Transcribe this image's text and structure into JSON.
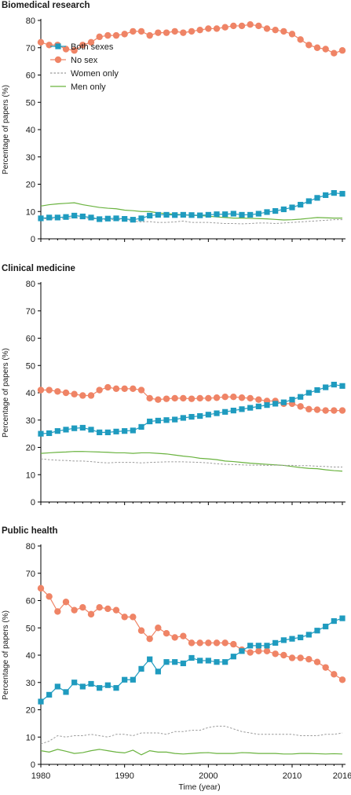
{
  "colors": {
    "both_sexes": "#1f9bbf",
    "no_sex": "#ef8466",
    "women_only": "#9a9a9a",
    "men_only": "#6ab33f"
  },
  "x_axis_label": "Time (year)",
  "y_axis_label": "Percentage of papers (%)",
  "chart_data": [
    {
      "type": "line",
      "title": "Biomedical research",
      "xlabel": "",
      "ylabel": "Percentage of papers (%)",
      "xlim": [
        1980,
        2016
      ],
      "ylim": [
        0,
        80
      ],
      "x_ticks": [
        "1980",
        "1990",
        "2000",
        "2010",
        "2016"
      ],
      "y_ticks": [
        "0",
        "10",
        "20",
        "30",
        "40",
        "50",
        "60",
        "70",
        "80"
      ],
      "grid": false,
      "legend": "upper-left",
      "x": [
        1980,
        1981,
        1982,
        1983,
        1984,
        1985,
        1986,
        1987,
        1988,
        1989,
        1990,
        1991,
        1992,
        1993,
        1994,
        1995,
        1996,
        1997,
        1998,
        1999,
        2000,
        2001,
        2002,
        2003,
        2004,
        2005,
        2006,
        2007,
        2008,
        2009,
        2010,
        2011,
        2012,
        2013,
        2014,
        2015,
        2016
      ],
      "series": [
        {
          "name": "Both sexes",
          "style": "square",
          "values": [
            7.5,
            7.8,
            7.8,
            8.0,
            8.5,
            8.2,
            7.8,
            7.2,
            7.4,
            7.5,
            7.3,
            7.0,
            7.5,
            8.5,
            8.8,
            8.8,
            8.7,
            8.8,
            8.7,
            8.6,
            8.8,
            9.0,
            9.0,
            9.2,
            8.8,
            8.8,
            9.2,
            9.8,
            10.2,
            10.8,
            11.5,
            12.5,
            13.8,
            15.0,
            16.0,
            16.8,
            16.5
          ]
        },
        {
          "name": "No sex",
          "style": "circle",
          "values": [
            72,
            71,
            71,
            69.5,
            69,
            71,
            72,
            74,
            74.5,
            74.5,
            75,
            76,
            76,
            74.5,
            75.5,
            75.5,
            76,
            75.5,
            76,
            76.5,
            77,
            77,
            77.5,
            78,
            78,
            78.5,
            78,
            77,
            76.5,
            76,
            75,
            73,
            71,
            70,
            69.5,
            68,
            69
          ]
        },
        {
          "name": "Women only",
          "style": "dashed",
          "values": [
            7.5,
            7.2,
            7.5,
            7.5,
            7.8,
            7.5,
            7.5,
            7.2,
            7.0,
            7.0,
            7.0,
            6.5,
            6.2,
            6.3,
            6.0,
            6.0,
            6.2,
            6.5,
            6.0,
            6.0,
            6.0,
            5.8,
            5.6,
            5.6,
            5.5,
            5.6,
            5.8,
            5.8,
            5.6,
            5.8,
            6.0,
            6.2,
            6.4,
            6.6,
            6.8,
            7.0,
            7.0
          ]
        },
        {
          "name": "Men only",
          "style": "solid",
          "values": [
            12.0,
            12.5,
            12.8,
            13.0,
            13.2,
            12.5,
            12.0,
            11.5,
            11.2,
            11.0,
            10.5,
            10.3,
            10.0,
            10.0,
            9.5,
            9.2,
            9.0,
            8.8,
            8.6,
            8.5,
            8.3,
            8.0,
            7.8,
            7.6,
            7.6,
            7.5,
            7.4,
            7.3,
            7.1,
            6.9,
            7.0,
            7.2,
            7.5,
            7.8,
            7.7,
            7.6,
            7.6
          ]
        }
      ]
    },
    {
      "type": "line",
      "title": "Clinical medicine",
      "xlabel": "",
      "ylabel": "Percentage of papers (%)",
      "xlim": [
        1980,
        2016
      ],
      "ylim": [
        0,
        80
      ],
      "x_ticks": [
        "1980",
        "1990",
        "2000",
        "2010",
        "2016"
      ],
      "y_ticks": [
        "0",
        "10",
        "20",
        "30",
        "40",
        "50",
        "60",
        "70",
        "80"
      ],
      "grid": false,
      "x": [
        1980,
        1981,
        1982,
        1983,
        1984,
        1985,
        1986,
        1987,
        1988,
        1989,
        1990,
        1991,
        1992,
        1993,
        1994,
        1995,
        1996,
        1997,
        1998,
        1999,
        2000,
        2001,
        2002,
        2003,
        2004,
        2005,
        2006,
        2007,
        2008,
        2009,
        2010,
        2011,
        2012,
        2013,
        2014,
        2015,
        2016
      ],
      "series": [
        {
          "name": "Both sexes",
          "style": "square",
          "values": [
            25.0,
            25.2,
            26.0,
            26.5,
            27.0,
            27.2,
            26.5,
            25.5,
            25.5,
            25.8,
            26.0,
            26.2,
            27.5,
            29.5,
            29.8,
            30.0,
            30.2,
            30.8,
            31.2,
            31.5,
            32.0,
            32.5,
            33.0,
            33.5,
            34.0,
            34.5,
            35.0,
            35.5,
            36.0,
            36.5,
            37.5,
            38.5,
            40.0,
            41.0,
            42.0,
            43.0,
            42.5
          ]
        },
        {
          "name": "No sex",
          "style": "circle",
          "values": [
            41,
            41,
            40.5,
            40,
            39.5,
            39,
            39,
            41,
            42,
            41.5,
            41.5,
            41.5,
            41,
            38,
            37.5,
            37.8,
            38,
            38,
            37.8,
            38,
            38,
            38.2,
            38.5,
            38.5,
            38.2,
            38,
            37.5,
            37,
            37,
            36,
            36,
            35,
            34,
            33.8,
            33.5,
            33.5,
            33.5
          ]
        },
        {
          "name": "Women only",
          "style": "dashed",
          "values": [
            15.8,
            15.5,
            15.3,
            15.2,
            15.0,
            15.0,
            14.8,
            14.5,
            14.3,
            14.5,
            14.5,
            14.5,
            14.3,
            14.5,
            14.6,
            14.7,
            14.7,
            14.7,
            14.6,
            14.5,
            14.3,
            14.0,
            13.8,
            13.7,
            13.6,
            13.5,
            13.5,
            13.4,
            13.5,
            13.4,
            13.4,
            13.3,
            13.3,
            13.1,
            13.0,
            12.8,
            12.8
          ]
        },
        {
          "name": "Men only",
          "style": "solid",
          "values": [
            17.8,
            18.0,
            18.2,
            18.3,
            18.5,
            18.5,
            18.4,
            18.3,
            18.2,
            18.0,
            18.0,
            17.8,
            18.0,
            18.0,
            17.8,
            17.6,
            17.2,
            16.8,
            16.5,
            16.0,
            15.8,
            15.5,
            15.0,
            14.8,
            14.5,
            14.2,
            14.0,
            13.8,
            13.6,
            13.4,
            13.0,
            12.6,
            12.3,
            12.2,
            11.8,
            11.5,
            11.3
          ]
        }
      ]
    },
    {
      "type": "line",
      "title": "Public health",
      "xlabel": "Time (year)",
      "ylabel": "Percentage of papers (%)",
      "xlim": [
        1980,
        2016
      ],
      "ylim": [
        0,
        80
      ],
      "x_ticks": [
        "1980",
        "1990",
        "2000",
        "2010",
        "2016"
      ],
      "y_ticks": [
        "0",
        "10",
        "20",
        "30",
        "40",
        "50",
        "60",
        "70",
        "80"
      ],
      "grid": false,
      "x": [
        1980,
        1981,
        1982,
        1983,
        1984,
        1985,
        1986,
        1987,
        1988,
        1989,
        1990,
        1991,
        1992,
        1993,
        1994,
        1995,
        1996,
        1997,
        1998,
        1999,
        2000,
        2001,
        2002,
        2003,
        2004,
        2005,
        2006,
        2007,
        2008,
        2009,
        2010,
        2011,
        2012,
        2013,
        2014,
        2015,
        2016
      ],
      "series": [
        {
          "name": "Both sexes",
          "style": "square",
          "values": [
            23.0,
            25.5,
            28.5,
            26.5,
            30.0,
            28.5,
            29.5,
            28.0,
            29.0,
            28.0,
            31.0,
            31.0,
            35.0,
            38.5,
            34.0,
            37.5,
            37.5,
            37.0,
            39.0,
            38.0,
            38.0,
            37.5,
            37.5,
            39.5,
            41.5,
            43.5,
            43.5,
            43.5,
            44.5,
            45.5,
            46.0,
            46.5,
            47.5,
            49.0,
            50.5,
            52.5,
            53.5
          ]
        },
        {
          "name": "No sex",
          "style": "circle",
          "values": [
            64.5,
            61.5,
            56,
            59.5,
            56.5,
            57.5,
            55,
            57.5,
            57,
            56.5,
            54,
            54,
            49,
            46,
            50,
            48,
            46.5,
            47,
            44.5,
            44.5,
            44.5,
            44.5,
            44.5,
            44,
            42,
            41,
            41.5,
            41.5,
            40.5,
            40,
            39,
            39,
            38.5,
            37.5,
            35.5,
            33,
            31
          ]
        },
        {
          "name": "Women only",
          "style": "dashed",
          "values": [
            7.5,
            8.5,
            10.5,
            10.0,
            10.5,
            10.5,
            11.0,
            10.5,
            10.0,
            11.0,
            11.0,
            10.5,
            11.5,
            11.5,
            11.5,
            11.0,
            12.0,
            12.0,
            12.5,
            12.5,
            13.5,
            14.0,
            14.0,
            13.0,
            12.0,
            11.5,
            11.0,
            11.0,
            11.0,
            11.0,
            11.0,
            10.5,
            10.5,
            10.5,
            11.0,
            11.0,
            11.5
          ]
        },
        {
          "name": "Men only",
          "style": "solid",
          "values": [
            5.0,
            4.5,
            5.5,
            4.8,
            4.0,
            4.3,
            5.0,
            5.5,
            5.0,
            4.5,
            4.2,
            5.2,
            3.5,
            5.0,
            4.5,
            4.5,
            4.0,
            3.8,
            4.0,
            4.2,
            4.3,
            4.0,
            4.0,
            4.0,
            4.3,
            4.2,
            4.0,
            4.0,
            4.0,
            3.8,
            3.8,
            4.0,
            4.0,
            3.9,
            3.8,
            3.9,
            3.8
          ]
        }
      ]
    }
  ]
}
